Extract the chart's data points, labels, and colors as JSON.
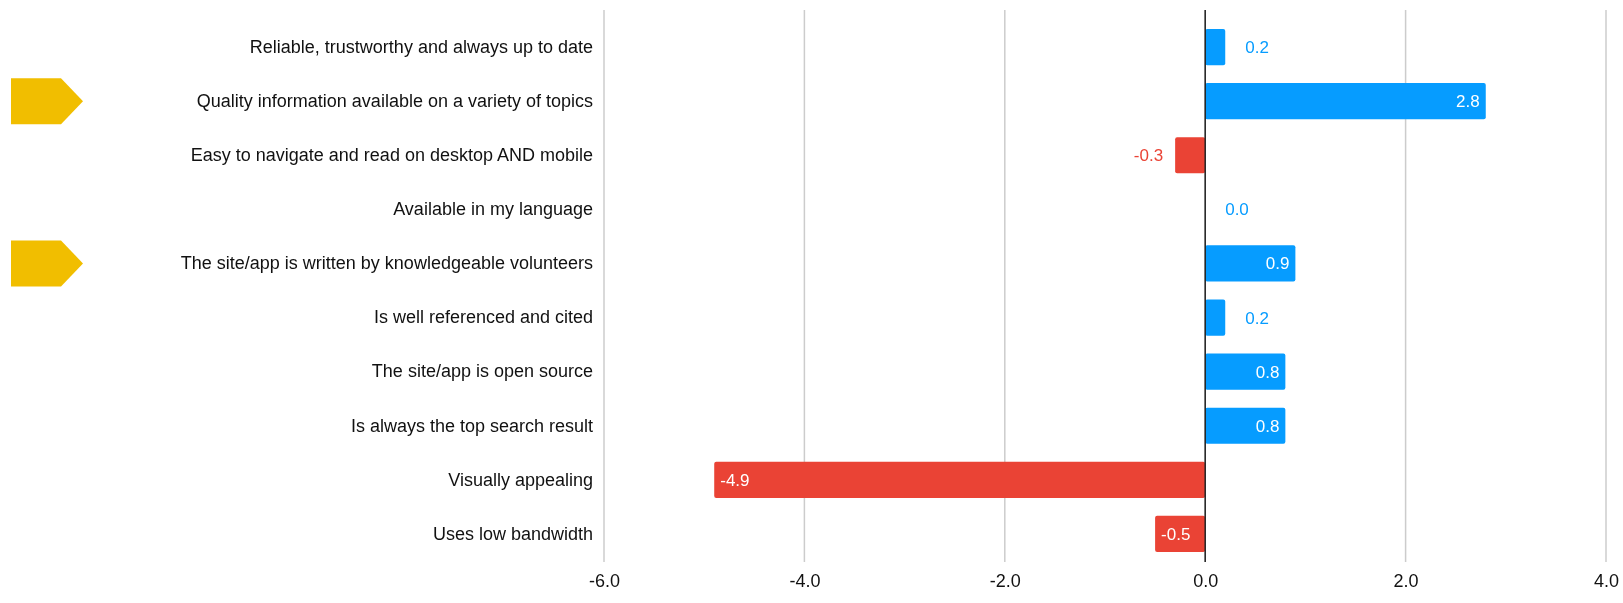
{
  "chart_data": {
    "type": "bar",
    "orientation": "horizontal",
    "categories": [
      "Reliable, trustworthy and always up to date",
      "Quality information available on a variety of topics",
      "Easy to navigate and read on desktop AND mobile",
      "Available in my language",
      "The site/app is written by knowledgeable volunteers",
      "Is well referenced and cited",
      "The site/app is open source",
      "Is always the top search result",
      "Visually appealing",
      "Uses low bandwidth"
    ],
    "values": [
      0.2,
      2.8,
      -0.3,
      0,
      0.9,
      0.2,
      0.8,
      0.8,
      -4.9,
      -0.5
    ],
    "colors": [
      "#069cff",
      "#069cff",
      "#ea4335",
      "#069cff",
      "#069cff",
      "#069cff",
      "#069cff",
      "#069cff",
      "#ea4335",
      "#ea4335"
    ],
    "value_labels": [
      "0.2",
      "2.8",
      "-0.3",
      "0.0",
      "0.9",
      "0.2",
      "0.8",
      "0.8",
      "-4.9",
      "-0.5"
    ],
    "xlim": [
      -6,
      4
    ],
    "xticks": [
      {
        "value": -6,
        "label": "-6.0"
      },
      {
        "value": -4,
        "label": "-4.0"
      },
      {
        "value": -2,
        "label": "-2.0"
      },
      {
        "value": 0,
        "label": "0.0"
      },
      {
        "value": 2,
        "label": "2.0"
      },
      {
        "value": 4,
        "label": "4.0"
      }
    ],
    "grid": "x"
  }
}
